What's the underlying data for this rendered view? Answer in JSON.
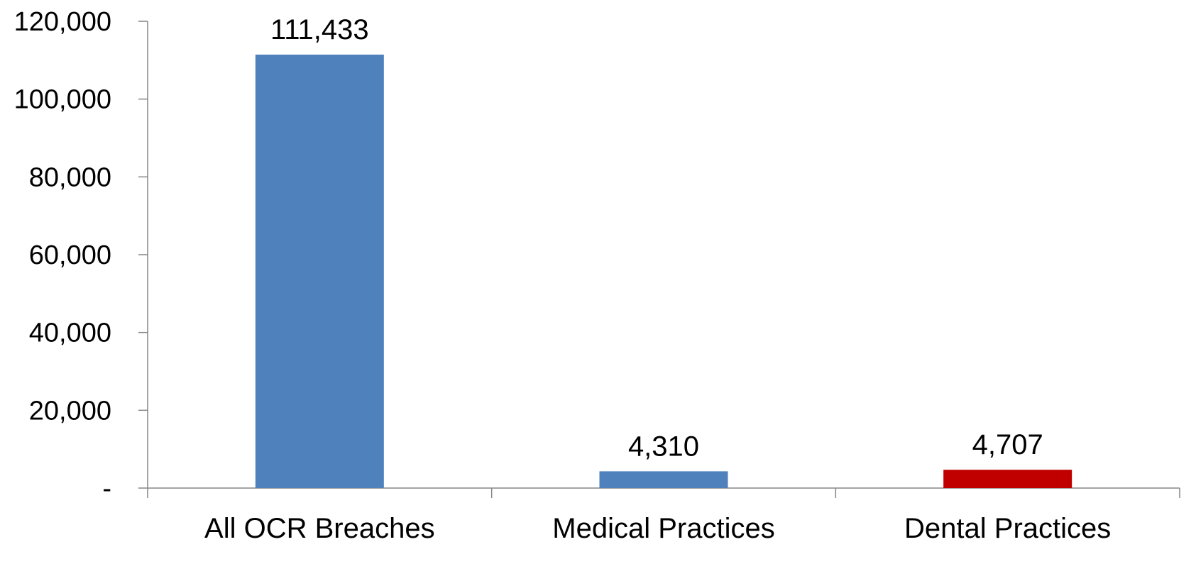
{
  "chart_data": {
    "type": "bar",
    "categories": [
      "All OCR Breaches",
      "Medical Practices",
      "Dental Practices"
    ],
    "values": [
      111433,
      4310,
      4707
    ],
    "data_labels": [
      "111,433",
      "4,310",
      "4,707"
    ],
    "bar_colors": [
      "#4F81BD",
      "#4F81BD",
      "#C00000"
    ],
    "ylim": [
      0,
      120000
    ],
    "y_ticks": [
      0,
      20000,
      40000,
      60000,
      80000,
      100000,
      120000
    ],
    "y_tick_labels": [
      "-",
      "20,000",
      "40,000",
      "60,000",
      "80,000",
      "100,000",
      "120,000"
    ],
    "title": "",
    "xlabel": "",
    "ylabel": "",
    "grid": false,
    "legend": "none"
  },
  "colors": {
    "axis": "#868686",
    "text": "#000000",
    "background": "#FFFFFF"
  }
}
